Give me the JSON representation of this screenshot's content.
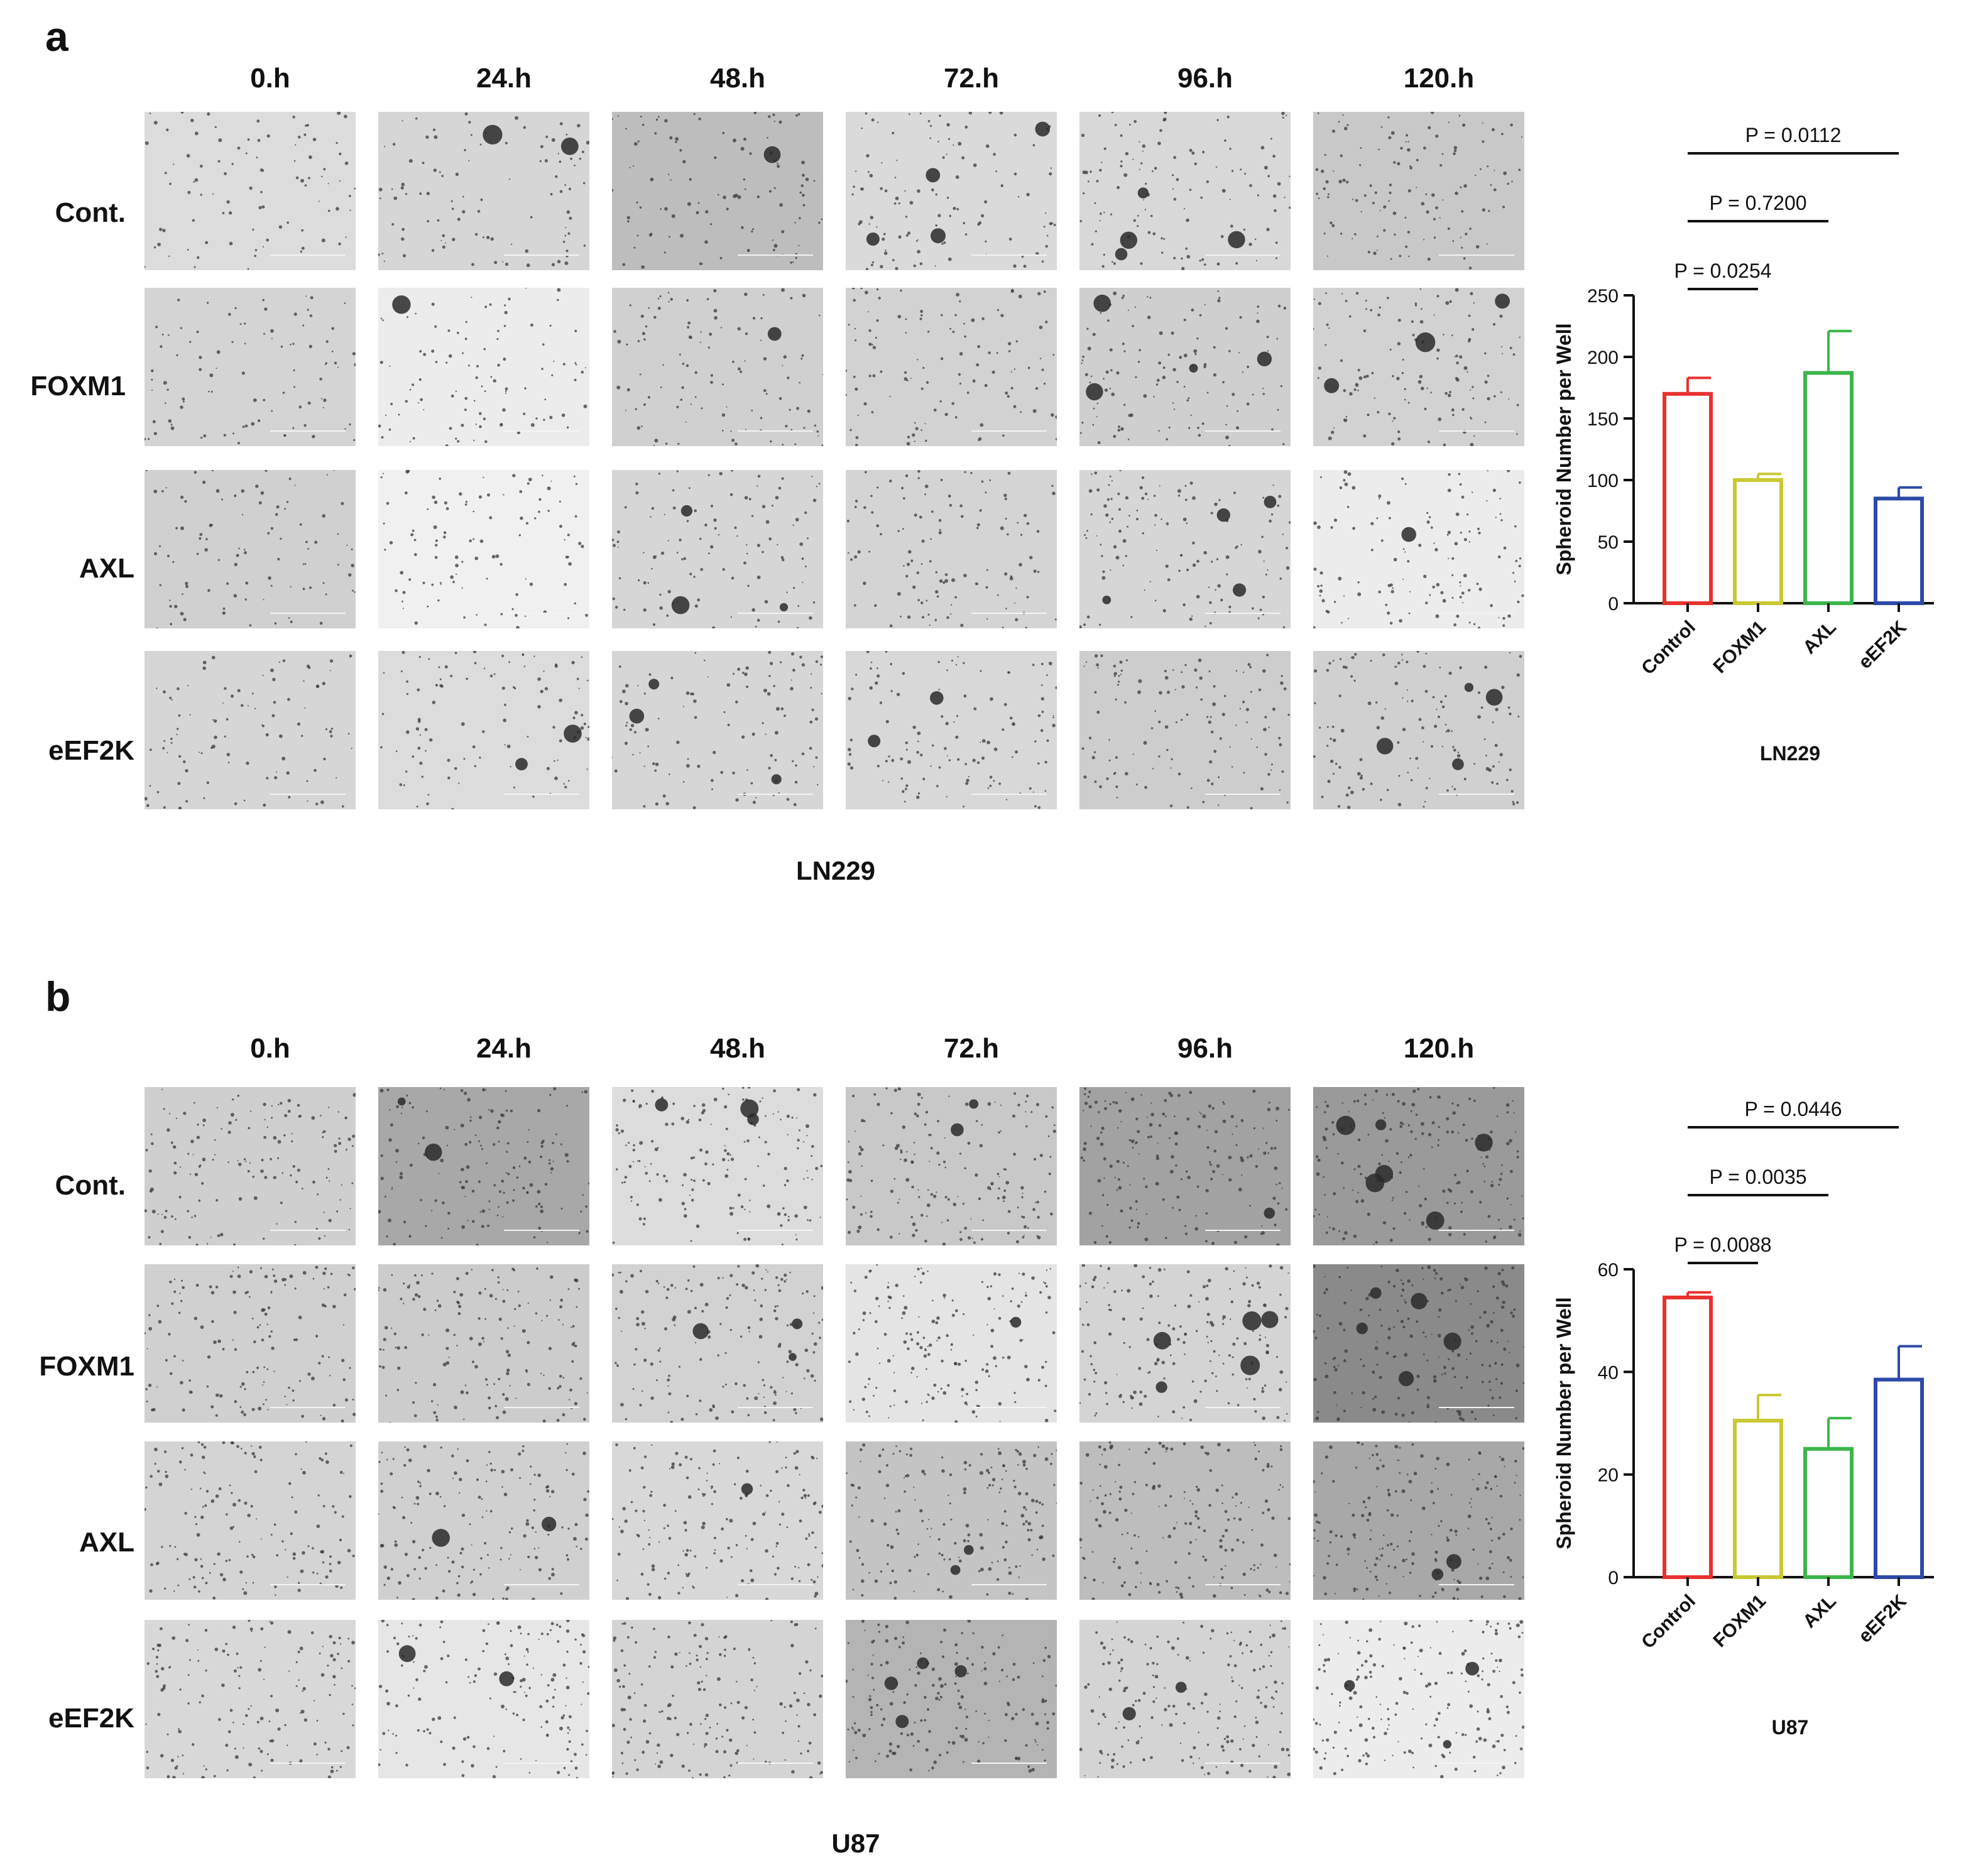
{
  "panels": [
    {
      "letter": "a",
      "cell_line": "LN229",
      "timepoints": [
        "0.h",
        "24.h",
        "48.h",
        "72.h",
        "96.h",
        "120.h"
      ],
      "conditions": [
        "Cont.",
        "FOXM1",
        "AXL",
        "eEF2K"
      ],
      "micrograph_tones": [
        [
          "#dcdcdc",
          "#d6d6d6",
          "#bdbdbd",
          "#dadada",
          "#d8d8d8",
          "#c8c8c8"
        ],
        [
          "#d4d4d4",
          "#ececec",
          "#d0d0d0",
          "#d2d2d2",
          "#cfcfcf",
          "#d2d2d2"
        ],
        [
          "#d0d0d0",
          "#f0f0f0",
          "#d6d6d6",
          "#d4d4d4",
          "#d6d6d6",
          "#ececec"
        ],
        [
          "#d6d6d6",
          "#dcdcdc",
          "#d6d6d6",
          "#d8d8d8",
          "#cdcdcd",
          "#d0d0d0"
        ]
      ]
    },
    {
      "letter": "b",
      "cell_line": "U87",
      "timepoints": [
        "0.h",
        "24.h",
        "48.h",
        "72.h",
        "96.h",
        "120.h"
      ],
      "conditions": [
        "Cont.",
        "FOXM1",
        "AXL",
        "eEF2K"
      ],
      "micrograph_tones": [
        [
          "#cfcfcf",
          "#a8a8a8",
          "#dcdcdc",
          "#c8c8c8",
          "#a2a2a2",
          "#9a9a9a"
        ],
        [
          "#d0d0d0",
          "#cccccc",
          "#d2d2d2",
          "#e4e4e4",
          "#d4d4d4",
          "#8a8a8a"
        ],
        [
          "#d4d4d4",
          "#d0d0d0",
          "#d8d8d8",
          "#c4c4c4",
          "#bdbdbd",
          "#a8a8a8"
        ],
        [
          "#d8d8d8",
          "#e6e6e6",
          "#d4d4d4",
          "#b4b4b4",
          "#d4d4d4",
          "#ececec"
        ]
      ]
    }
  ],
  "chart_data": [
    {
      "type": "bar",
      "xlabel": "LN229",
      "ylabel": "Spheroid Number per Well",
      "ylim": [
        0,
        250
      ],
      "yticks": [
        0,
        50,
        100,
        150,
        200,
        250
      ],
      "categories": [
        "Control",
        "FOXM1",
        "AXL",
        "eEF2K"
      ],
      "values": [
        170,
        100,
        187,
        85
      ],
      "errors": [
        13,
        5,
        34,
        9
      ],
      "colors": [
        "#e8322e",
        "#c9c832",
        "#3cb54a",
        "#2d4aa8"
      ],
      "comparisons": [
        {
          "label": "P = 0.0254",
          "from": 0,
          "to": 1
        },
        {
          "label": "P = 0.7200",
          "from": 0,
          "to": 2
        },
        {
          "label": "P = 0.0112",
          "from": 0,
          "to": 3
        }
      ]
    },
    {
      "type": "bar",
      "xlabel": "U87",
      "ylabel": "Spheroid Number per Well",
      "ylim": [
        0,
        60
      ],
      "yticks": [
        0,
        20,
        40,
        60
      ],
      "categories": [
        "Control",
        "FOXM1",
        "AXL",
        "eEF2K"
      ],
      "values": [
        54.5,
        30.5,
        25,
        38.5
      ],
      "errors": [
        1,
        5,
        6,
        6.5
      ],
      "colors": [
        "#e8322e",
        "#c9c832",
        "#3cb54a",
        "#2d4aa8"
      ],
      "comparisons": [
        {
          "label": "P = 0.0088",
          "from": 0,
          "to": 1
        },
        {
          "label": "P = 0.0035",
          "from": 0,
          "to": 2
        },
        {
          "label": "P = 0.0446",
          "from": 0,
          "to": 3
        }
      ]
    }
  ]
}
